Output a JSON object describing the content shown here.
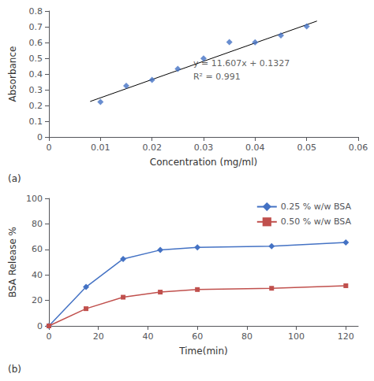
{
  "chart_data": [
    {
      "type": "scatter",
      "title": "(a)",
      "xlabel": "Concentration (mg/ml)",
      "ylabel": "Absorbance",
      "series": [
        {
          "type": "line",
          "color": "black",
          "x": [
            0.008,
            0.052
          ],
          "values": [
            0.225556,
            0.736264
          ]
        },
        {
          "type": "scatter",
          "color": "#4472C4",
          "marker": "diamond",
          "x": [
            0.01,
            0.015,
            0.02,
            0.025,
            0.03,
            0.035,
            0.04,
            0.045,
            0.05
          ],
          "values": [
            0.223,
            0.325,
            0.363,
            0.432,
            0.499,
            0.603,
            0.601,
            0.645,
            0.703
          ]
        }
      ],
      "annotations": [
        {
          "text": "y = 11.607x + 0.1327",
          "x": 0.028,
          "y": 0.44
        },
        {
          "text": "R² = 0.991",
          "x": 0.028,
          "y": 0.355
        }
      ],
      "xlim": [
        0,
        0.06
      ],
      "ylim": [
        0,
        0.8
      ],
      "xticks": [
        0,
        0.01,
        0.02,
        0.03,
        0.04,
        0.05,
        0.06
      ],
      "yticks": [
        0,
        0.1,
        0.2,
        0.3,
        0.4,
        0.5,
        0.6,
        0.7,
        0.8
      ],
      "grid": false
    },
    {
      "type": "line",
      "title": "(b)",
      "xlabel": "Time(min)",
      "ylabel": "BSA Release %",
      "x": [
        0,
        15,
        30,
        45,
        60,
        90,
        120
      ],
      "series": [
        {
          "name": "0.25 % w/w BSA",
          "color": "#4472C4",
          "marker": "diamond",
          "values": [
            0,
            30.5,
            52.5,
            59.5,
            61.5,
            62.5,
            65.5
          ]
        },
        {
          "name": "0.50 % w/w BSA",
          "color": "#C0504D",
          "marker": "square",
          "values": [
            0,
            13.5,
            22.5,
            26.5,
            28.5,
            29.5,
            31.5
          ]
        }
      ],
      "xlim": [
        0,
        125
      ],
      "ylim": [
        0,
        100
      ],
      "xticks": [
        0,
        20,
        40,
        60,
        80,
        100,
        120
      ],
      "yticks": [
        0,
        20,
        40,
        60,
        80,
        100
      ],
      "legend": "upper right",
      "grid": false
    }
  ]
}
